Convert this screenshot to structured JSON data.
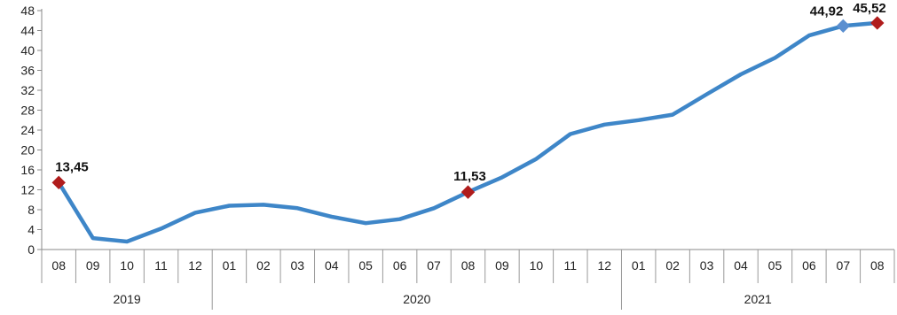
{
  "chart_data": {
    "type": "line",
    "title": "",
    "xlabel": "",
    "ylabel": "",
    "ylim": [
      0,
      48
    ],
    "yticks": [
      0,
      4,
      8,
      12,
      16,
      20,
      24,
      28,
      32,
      36,
      40,
      44,
      48
    ],
    "grid": false,
    "legend": "none",
    "x": [
      "08",
      "09",
      "10",
      "11",
      "12",
      "01",
      "02",
      "03",
      "04",
      "05",
      "06",
      "07",
      "08",
      "09",
      "10",
      "11",
      "12",
      "01",
      "02",
      "03",
      "04",
      "05",
      "06",
      "07",
      "08"
    ],
    "year_groups": [
      {
        "year": "2019",
        "count": 5
      },
      {
        "year": "2020",
        "count": 12
      },
      {
        "year": "2021",
        "count": 8
      }
    ],
    "series": [
      {
        "color": "#3E86C8",
        "values": [
          13.45,
          2.3,
          1.6,
          4.2,
          7.4,
          8.8,
          9.0,
          8.3,
          6.6,
          5.3,
          6.1,
          8.3,
          11.53,
          14.5,
          18.2,
          23.2,
          25.1,
          26.0,
          27.1,
          31.2,
          35.2,
          38.5,
          43.0,
          44.92,
          45.52
        ]
      }
    ],
    "highlighted_points": [
      {
        "index": 0,
        "label": "13,45",
        "color": "#B01C1C"
      },
      {
        "index": 12,
        "label": "11,53",
        "color": "#B01C1C"
      },
      {
        "index": 23,
        "label": "44,92",
        "color": "#5B8FD0"
      },
      {
        "index": 24,
        "label": "45,52",
        "color": "#B01C1C"
      }
    ]
  }
}
